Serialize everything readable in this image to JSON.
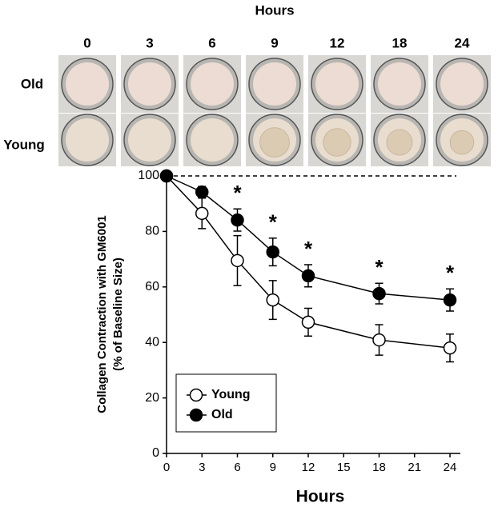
{
  "photos": {
    "title": "Hours",
    "columns": [
      "0",
      "3",
      "6",
      "9",
      "12",
      "18",
      "24"
    ],
    "rows": [
      "Old",
      "Young"
    ]
  },
  "chart_data": {
    "type": "line",
    "x": [
      0,
      3,
      6,
      9,
      12,
      18,
      24
    ],
    "xlabel": "Hours",
    "ylabel": [
      "Collagen Contraction with GM6001",
      "(% of Baseline Size)"
    ],
    "xlim": [
      0,
      24
    ],
    "xticks": [
      0,
      3,
      6,
      9,
      12,
      15,
      18,
      21,
      24
    ],
    "ylim": [
      0,
      100
    ],
    "yticks": [
      0,
      20,
      40,
      60,
      80,
      100
    ],
    "reference_line": 100,
    "legend": "lower left",
    "series": [
      {
        "name": "Young",
        "color": "#ffffff",
        "values": [
          100,
          86.5,
          69.5,
          55.3,
          47.3,
          40.9,
          38.0
        ],
        "errors": [
          0,
          5.5,
          9,
          7,
          5,
          5.5,
          5
        ]
      },
      {
        "name": "Old",
        "color": "#000000",
        "values": [
          100,
          94.2,
          84.1,
          72.6,
          64.0,
          57.6,
          55.3
        ],
        "errors": [
          0,
          2,
          4,
          5,
          4,
          3.7,
          4
        ]
      }
    ],
    "annotations": [
      {
        "x": 6,
        "text": "*"
      },
      {
        "x": 9,
        "text": "*"
      },
      {
        "x": 12,
        "text": "*"
      },
      {
        "x": 18,
        "text": "*"
      },
      {
        "x": 24,
        "text": "*"
      }
    ]
  }
}
